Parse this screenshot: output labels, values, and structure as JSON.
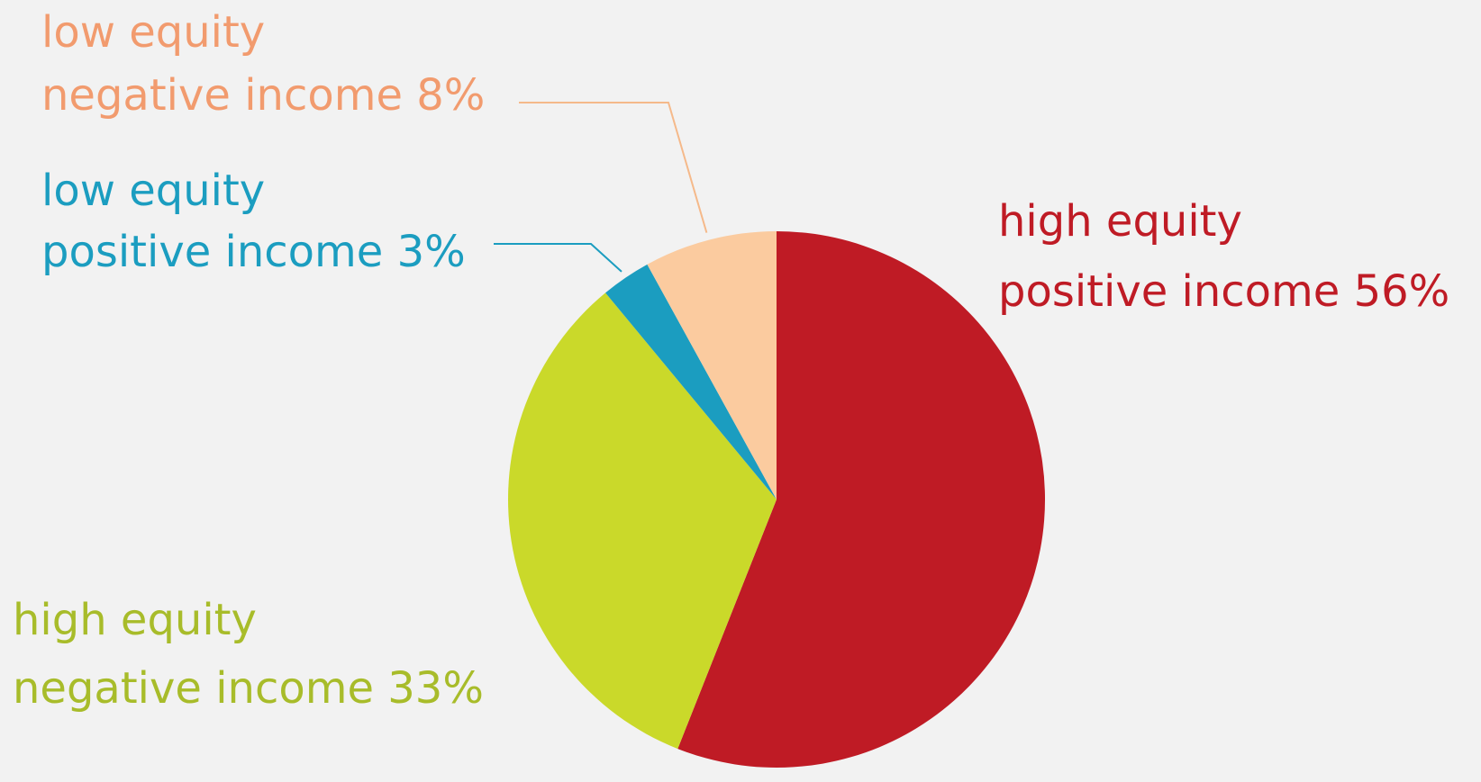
{
  "chart_data": {
    "type": "pie",
    "title": "",
    "start": "12 o'clock",
    "direction": "clockwise",
    "slices": [
      {
        "line1": "high equity",
        "line2": "positive income 56%",
        "value": 56,
        "color": "#bf1b25",
        "label_color": "#bf1b25"
      },
      {
        "line1": "high equity",
        "line2": "negative income 33%",
        "value": 33,
        "color": "#cad92a",
        "label_color": "#a8bc2a"
      },
      {
        "line1": "low equity",
        "line2": "positive income 3%",
        "value": 3,
        "color": "#1b9dc0",
        "label_color": "#1b9dc0"
      },
      {
        "line1": "low equity",
        "line2": "negative income 8%",
        "value": 8,
        "color": "#fbcb9f",
        "label_color": "#f29b6e"
      }
    ],
    "background": "#f2f2f2"
  }
}
